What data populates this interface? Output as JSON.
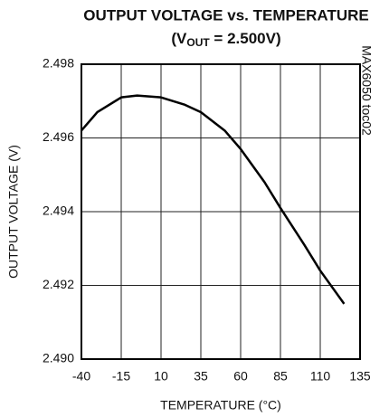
{
  "chart_data": {
    "type": "line",
    "title": "OUTPUT VOLTAGE vs. TEMPERATURE",
    "subtitle": [
      "(V",
      "OUT",
      " = 2.500V)"
    ],
    "x_label": "TEMPERATURE (°C)",
    "y_label": "OUTPUT VOLTAGE (V)",
    "annotation": "MAX6050 toc02",
    "x": [
      -40,
      -30,
      -15,
      -5,
      10,
      25,
      35,
      50,
      60,
      75,
      85,
      100,
      110,
      125
    ],
    "series": [
      {
        "name": "VOUT",
        "color": "#000000",
        "values": [
          2.4962,
          2.4967,
          2.4971,
          2.49715,
          2.4971,
          2.4969,
          2.4967,
          2.4962,
          2.4957,
          2.4948,
          2.4941,
          2.4931,
          2.4924,
          2.4915
        ]
      }
    ],
    "xlim": [
      -40,
      135
    ],
    "xticks": [
      -40,
      -15,
      10,
      35,
      60,
      85,
      110,
      135
    ],
    "ylim": [
      2.49,
      2.498
    ],
    "yticks": [
      {
        "value": 2.49,
        "label": "2.490"
      },
      {
        "value": 2.492,
        "label": "2.492"
      },
      {
        "value": 2.494,
        "label": "2.494"
      },
      {
        "value": 2.496,
        "label": "2.496"
      },
      {
        "value": 2.498,
        "label": "2.498"
      }
    ],
    "grid": true
  }
}
